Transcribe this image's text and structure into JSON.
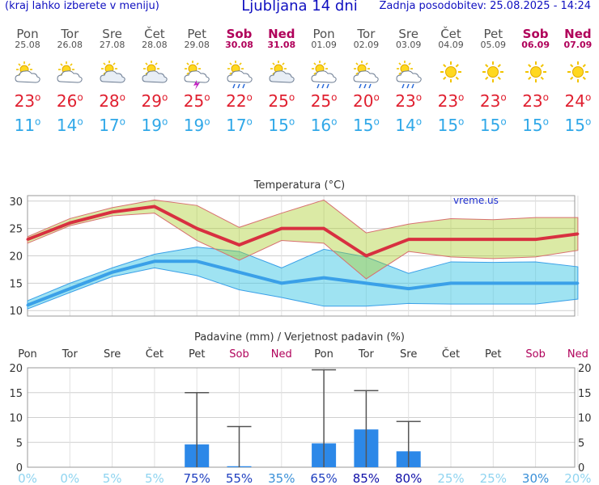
{
  "header": {
    "menu_hint": "(kraj lahko izberete v meniju)",
    "title": "Ljubljana 14 dni",
    "updated": "Zadnja posodobitev: 25.08.2025 - 14:24"
  },
  "days": [
    {
      "name": "Pon",
      "date": "25.08",
      "weekend": false,
      "icon": "partly-cloudy-icon",
      "tmax": "23",
      "tmin": "11"
    },
    {
      "name": "Tor",
      "date": "26.08",
      "weekend": false,
      "icon": "partly-cloudy-icon",
      "tmax": "26",
      "tmin": "14"
    },
    {
      "name": "Sre",
      "date": "27.08",
      "weekend": false,
      "icon": "mostly-cloudy-icon",
      "tmax": "28",
      "tmin": "17"
    },
    {
      "name": "Čet",
      "date": "28.08",
      "weekend": false,
      "icon": "mostly-cloudy-icon",
      "tmax": "29",
      "tmin": "19"
    },
    {
      "name": "Pet",
      "date": "29.08",
      "weekend": false,
      "icon": "thunderstorm-icon",
      "tmax": "25",
      "tmin": "19"
    },
    {
      "name": "Sob",
      "date": "30.08",
      "weekend": true,
      "icon": "showers-icon",
      "tmax": "22",
      "tmin": "17"
    },
    {
      "name": "Ned",
      "date": "31.08",
      "weekend": true,
      "icon": "mostly-cloudy-icon",
      "tmax": "25",
      "tmin": "15"
    },
    {
      "name": "Pon",
      "date": "01.09",
      "weekend": false,
      "icon": "showers-icon",
      "tmax": "25",
      "tmin": "16"
    },
    {
      "name": "Tor",
      "date": "02.09",
      "weekend": false,
      "icon": "showers-icon",
      "tmax": "20",
      "tmin": "15"
    },
    {
      "name": "Sre",
      "date": "03.09",
      "weekend": false,
      "icon": "showers-icon",
      "tmax": "23",
      "tmin": "14"
    },
    {
      "name": "Čet",
      "date": "04.09",
      "weekend": false,
      "icon": "sun-icon",
      "tmax": "23",
      "tmin": "15"
    },
    {
      "name": "Pet",
      "date": "05.09",
      "weekend": false,
      "icon": "sun-icon",
      "tmax": "23",
      "tmin": "15"
    },
    {
      "name": "Sob",
      "date": "06.09",
      "weekend": true,
      "icon": "sun-icon",
      "tmax": "23",
      "tmin": "15"
    },
    {
      "name": "Ned",
      "date": "07.09",
      "weekend": true,
      "icon": "sun-icon",
      "tmax": "24",
      "tmin": "15"
    }
  ],
  "chart_data": [
    {
      "type": "line",
      "title": "Temperatura (°C)",
      "watermark": "vreme.us",
      "x": [
        0,
        1,
        2,
        3,
        4,
        5,
        6,
        7,
        8,
        9,
        10,
        11,
        12,
        13
      ],
      "ylim": [
        9,
        31
      ],
      "yticks": [
        10,
        15,
        20,
        25,
        30
      ],
      "grid": true,
      "series": [
        {
          "key": "tmax",
          "color": "#d83040",
          "values": [
            23,
            26,
            28,
            29,
            25,
            22,
            25,
            25,
            20,
            23,
            23,
            23,
            23,
            24
          ]
        },
        {
          "key": "tmax_range_high",
          "values": [
            23.5,
            26.8,
            28.8,
            30.2,
            29.2,
            25.2,
            27.8,
            30.2,
            24.2,
            25.8,
            26.8,
            26.6,
            27.0,
            27.0
          ]
        },
        {
          "key": "tmax_range_low",
          "values": [
            22.3,
            25.5,
            27.3,
            27.8,
            22.8,
            19.2,
            22.8,
            22.3,
            15.8,
            20.8,
            19.8,
            19.5,
            19.8,
            21.0
          ]
        },
        {
          "key": "tmin",
          "color": "#3aa0e8",
          "values": [
            11,
            14,
            17,
            19,
            19,
            17,
            15,
            16,
            15,
            14,
            15,
            15,
            15,
            15
          ]
        },
        {
          "key": "tmin_range_high",
          "values": [
            11.8,
            15.0,
            17.8,
            20.3,
            21.6,
            20.8,
            17.8,
            21.2,
            19.8,
            16.8,
            18.9,
            18.8,
            18.9,
            18.0
          ]
        },
        {
          "key": "tmin_range_low",
          "values": [
            10.3,
            13.3,
            16.2,
            17.8,
            16.4,
            13.8,
            12.4,
            10.8,
            10.8,
            11.3,
            11.2,
            11.2,
            11.2,
            12.1
          ]
        }
      ]
    },
    {
      "type": "bar",
      "title": "Padavine (mm) / Verjetnost padavin (%)",
      "categories": [
        "Pon",
        "Tor",
        "Sre",
        "Čet",
        "Pet",
        "Sob",
        "Ned",
        "Pon",
        "Tor",
        "Sre",
        "Čet",
        "Pet",
        "Sob",
        "Ned"
      ],
      "weekend": [
        false,
        false,
        false,
        false,
        false,
        true,
        true,
        false,
        false,
        false,
        false,
        false,
        true,
        true
      ],
      "values": [
        0,
        0,
        0,
        0,
        4.6,
        0.2,
        0,
        4.8,
        7.6,
        3.2,
        0,
        0,
        0,
        0
      ],
      "error_max": [
        null,
        null,
        null,
        null,
        15.0,
        8.2,
        null,
        19.6,
        15.4,
        9.2,
        null,
        null,
        null,
        null
      ],
      "probability": [
        "0%",
        "0%",
        "5%",
        "5%",
        "75%",
        "55%",
        "35%",
        "65%",
        "85%",
        "80%",
        "25%",
        "25%",
        "30%",
        "20%"
      ],
      "probability_values": [
        0,
        0,
        5,
        5,
        75,
        55,
        35,
        65,
        85,
        80,
        25,
        25,
        30,
        20
      ],
      "ylim": [
        0,
        20
      ],
      "yticks": [
        0,
        5,
        10,
        15,
        20
      ],
      "grid": true
    }
  ]
}
